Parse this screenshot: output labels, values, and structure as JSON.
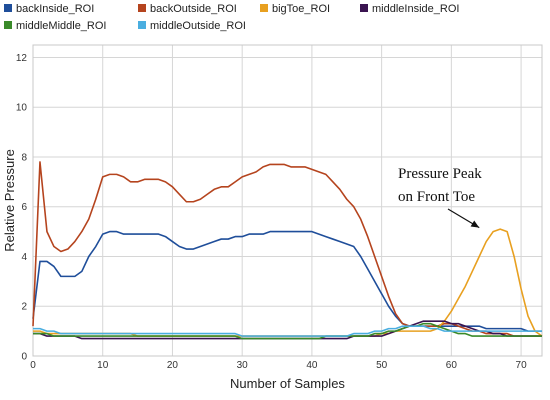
{
  "chart_data": {
    "type": "line",
    "title": "",
    "xlabel": "Number of Samples",
    "ylabel": "Relative Pressure",
    "xlim": [
      0,
      73
    ],
    "ylim": [
      0,
      12.5
    ],
    "xticks": [
      "0",
      "10",
      "20",
      "30",
      "40",
      "50",
      "60",
      "70"
    ],
    "yticks": [
      "0",
      "2",
      "4",
      "6",
      "8",
      "10",
      "12"
    ],
    "grid": true,
    "legend_position": "top",
    "annotation": {
      "lines": [
        "Pressure Peak",
        "on Front Toe"
      ],
      "points_to": {
        "x": 64,
        "y": 5.0
      }
    },
    "x": [
      0,
      1,
      2,
      3,
      4,
      5,
      6,
      7,
      8,
      9,
      10,
      11,
      12,
      13,
      14,
      15,
      16,
      17,
      18,
      19,
      20,
      21,
      22,
      23,
      24,
      25,
      26,
      27,
      28,
      29,
      30,
      31,
      32,
      33,
      34,
      35,
      36,
      37,
      38,
      39,
      40,
      41,
      42,
      43,
      44,
      45,
      46,
      47,
      48,
      49,
      50,
      51,
      52,
      53,
      54,
      55,
      56,
      57,
      58,
      59,
      60,
      61,
      62,
      63,
      64,
      65,
      66,
      67,
      68,
      69,
      70,
      71,
      72,
      73
    ],
    "series": [
      {
        "name": "backInside_ROI",
        "color": "#1f4e9a",
        "values": [
          1.5,
          3.8,
          3.8,
          3.6,
          3.2,
          3.2,
          3.2,
          3.4,
          4.0,
          4.4,
          4.9,
          5.0,
          5.0,
          4.9,
          4.9,
          4.9,
          4.9,
          4.9,
          4.9,
          4.8,
          4.6,
          4.4,
          4.3,
          4.3,
          4.4,
          4.5,
          4.6,
          4.7,
          4.7,
          4.8,
          4.8,
          4.9,
          4.9,
          4.9,
          5.0,
          5.0,
          5.0,
          5.0,
          5.0,
          5.0,
          5.0,
          4.9,
          4.8,
          4.7,
          4.6,
          4.5,
          4.4,
          4.0,
          3.5,
          3.0,
          2.5,
          2.0,
          1.6,
          1.3,
          1.2,
          1.2,
          1.2,
          1.2,
          1.2,
          1.2,
          1.2,
          1.2,
          1.2,
          1.2,
          1.2,
          1.1,
          1.1,
          1.1,
          1.1,
          1.1,
          1.1,
          1.0,
          1.0,
          1.0
        ]
      },
      {
        "name": "backOutside_ROI",
        "color": "#b5441e",
        "values": [
          1.2,
          7.8,
          5.0,
          4.4,
          4.2,
          4.3,
          4.6,
          5.0,
          5.5,
          6.3,
          7.2,
          7.3,
          7.3,
          7.2,
          7.0,
          7.0,
          7.1,
          7.1,
          7.1,
          7.0,
          6.8,
          6.5,
          6.2,
          6.2,
          6.3,
          6.5,
          6.7,
          6.8,
          6.8,
          7.0,
          7.2,
          7.3,
          7.4,
          7.6,
          7.7,
          7.7,
          7.7,
          7.6,
          7.6,
          7.6,
          7.5,
          7.4,
          7.3,
          7.0,
          6.7,
          6.3,
          6.0,
          5.5,
          4.8,
          4.0,
          3.2,
          2.4,
          1.7,
          1.3,
          1.2,
          1.2,
          1.2,
          1.2,
          1.2,
          1.3,
          1.3,
          1.2,
          1.1,
          1.0,
          1.0,
          0.9,
          0.9,
          0.9,
          0.9,
          0.8,
          0.8,
          0.8,
          0.8,
          0.8
        ]
      },
      {
        "name": "bigToe_ROI",
        "color": "#e8a020",
        "values": [
          1.0,
          1.0,
          0.9,
          0.9,
          0.9,
          0.9,
          0.9,
          0.9,
          0.9,
          0.9,
          0.9,
          0.9,
          0.9,
          0.9,
          0.9,
          0.8,
          0.8,
          0.8,
          0.8,
          0.8,
          0.8,
          0.8,
          0.8,
          0.8,
          0.8,
          0.8,
          0.8,
          0.8,
          0.8,
          0.8,
          0.8,
          0.8,
          0.8,
          0.8,
          0.8,
          0.8,
          0.8,
          0.8,
          0.8,
          0.8,
          0.8,
          0.8,
          0.8,
          0.8,
          0.8,
          0.8,
          0.8,
          0.8,
          0.8,
          0.8,
          0.9,
          0.9,
          1.0,
          1.0,
          1.0,
          1.0,
          1.0,
          1.0,
          1.1,
          1.4,
          1.8,
          2.3,
          2.8,
          3.4,
          4.0,
          4.6,
          5.0,
          5.1,
          5.0,
          4.0,
          2.7,
          1.6,
          1.0,
          0.8
        ]
      },
      {
        "name": "middleInside_ROI",
        "color": "#3a1450",
        "values": [
          0.9,
          0.9,
          0.8,
          0.8,
          0.8,
          0.8,
          0.8,
          0.7,
          0.7,
          0.7,
          0.7,
          0.7,
          0.7,
          0.7,
          0.7,
          0.7,
          0.7,
          0.7,
          0.7,
          0.7,
          0.7,
          0.7,
          0.7,
          0.7,
          0.7,
          0.7,
          0.7,
          0.7,
          0.7,
          0.7,
          0.7,
          0.7,
          0.7,
          0.7,
          0.7,
          0.7,
          0.7,
          0.7,
          0.7,
          0.7,
          0.7,
          0.7,
          0.7,
          0.7,
          0.7,
          0.7,
          0.8,
          0.8,
          0.8,
          0.8,
          0.8,
          0.9,
          1.0,
          1.1,
          1.2,
          1.3,
          1.4,
          1.4,
          1.4,
          1.4,
          1.3,
          1.3,
          1.2,
          1.1,
          1.0,
          1.0,
          0.9,
          0.9,
          0.8,
          0.8,
          0.8,
          0.8,
          0.8,
          0.8
        ]
      },
      {
        "name": "middleMiddle_ROI",
        "color": "#3a8a2a",
        "values": [
          0.9,
          0.9,
          0.9,
          0.8,
          0.8,
          0.8,
          0.8,
          0.8,
          0.8,
          0.8,
          0.8,
          0.8,
          0.8,
          0.8,
          0.8,
          0.8,
          0.8,
          0.8,
          0.8,
          0.8,
          0.8,
          0.8,
          0.8,
          0.8,
          0.8,
          0.8,
          0.8,
          0.8,
          0.8,
          0.8,
          0.7,
          0.7,
          0.7,
          0.7,
          0.7,
          0.7,
          0.7,
          0.7,
          0.7,
          0.7,
          0.7,
          0.7,
          0.8,
          0.8,
          0.8,
          0.8,
          0.8,
          0.8,
          0.8,
          0.9,
          0.9,
          1.0,
          1.0,
          1.1,
          1.2,
          1.2,
          1.3,
          1.3,
          1.2,
          1.1,
          1.0,
          0.9,
          0.9,
          0.8,
          0.8,
          0.8,
          0.8,
          0.8,
          0.8,
          0.8,
          0.8,
          0.8,
          0.8,
          0.8
        ]
      },
      {
        "name": "middleOutside_ROI",
        "color": "#4aaee0",
        "values": [
          1.1,
          1.1,
          1.0,
          1.0,
          0.9,
          0.9,
          0.9,
          0.9,
          0.9,
          0.9,
          0.9,
          0.9,
          0.9,
          0.9,
          0.9,
          0.9,
          0.9,
          0.9,
          0.9,
          0.9,
          0.9,
          0.9,
          0.9,
          0.9,
          0.9,
          0.9,
          0.9,
          0.9,
          0.9,
          0.9,
          0.8,
          0.8,
          0.8,
          0.8,
          0.8,
          0.8,
          0.8,
          0.8,
          0.8,
          0.8,
          0.8,
          0.8,
          0.8,
          0.8,
          0.8,
          0.8,
          0.9,
          0.9,
          0.9,
          1.0,
          1.0,
          1.1,
          1.1,
          1.2,
          1.2,
          1.2,
          1.2,
          1.1,
          1.1,
          1.0,
          1.0,
          1.0,
          1.0,
          1.0,
          1.0,
          1.0,
          1.0,
          1.0,
          1.0,
          1.0,
          1.0,
          1.0,
          1.0,
          1.0
        ]
      }
    ]
  }
}
